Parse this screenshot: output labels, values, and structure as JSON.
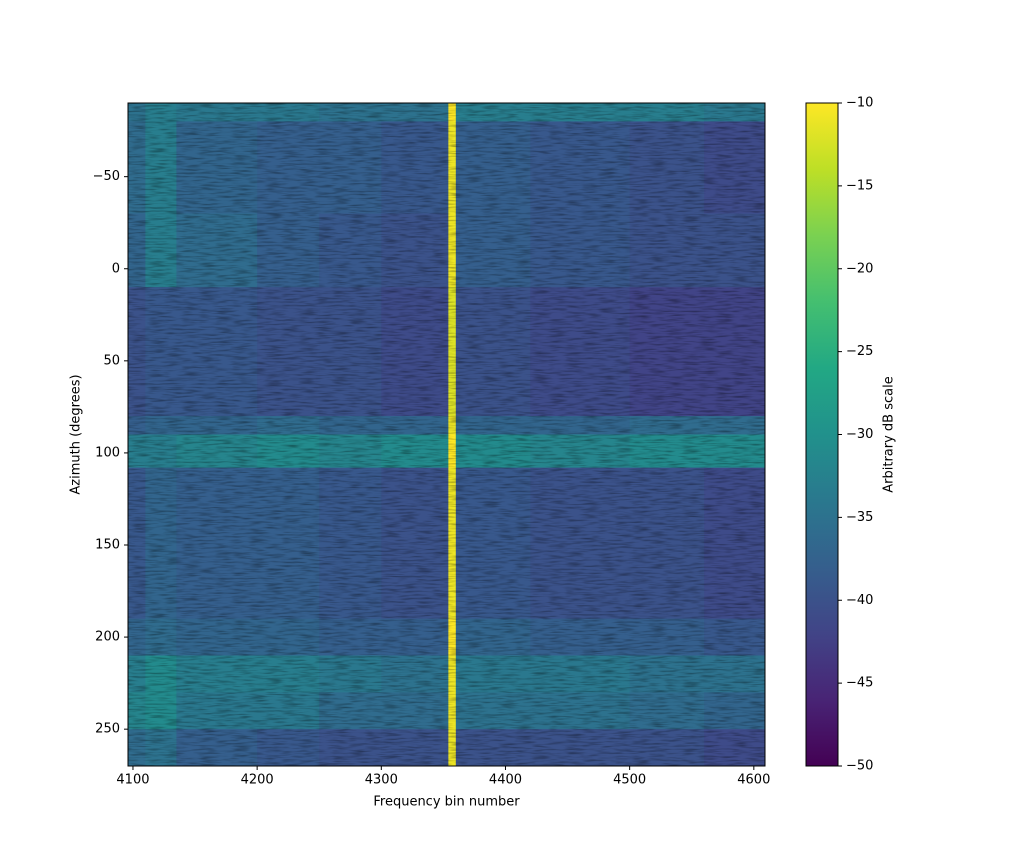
{
  "chart_data": {
    "type": "heatmap",
    "xlabel": "Frequency bin number",
    "ylabel": "Azimuth (degrees)",
    "colorbar_label": "Arbitrary dB scale",
    "colormap": "viridis",
    "clim": [
      -50,
      -10
    ],
    "cticks": [
      {
        "value": -50,
        "label": "−50"
      },
      {
        "value": -45,
        "label": "−45"
      },
      {
        "value": -40,
        "label": "−40"
      },
      {
        "value": -35,
        "label": "−35"
      },
      {
        "value": -30,
        "label": "−30"
      },
      {
        "value": -25,
        "label": "−25"
      },
      {
        "value": -20,
        "label": "−20"
      },
      {
        "value": -15,
        "label": "−15"
      },
      {
        "value": -10,
        "label": "−10"
      }
    ],
    "xlim": [
      4096,
      4609
    ],
    "ylim": [
      270,
      -90
    ],
    "xticks": [
      4100,
      4200,
      4300,
      4400,
      4500,
      4600
    ],
    "yticks": [
      {
        "value": -50,
        "label": "−50"
      },
      0,
      50,
      100,
      150,
      200,
      250
    ],
    "x_edges": [
      4096,
      4110,
      4135,
      4200,
      4250,
      4300,
      4354,
      4360,
      4420,
      4500,
      4560,
      4609
    ],
    "y_edges": [
      -90,
      -80,
      -30,
      10,
      80,
      90,
      108,
      190,
      210,
      230,
      250,
      270
    ],
    "z": [
      [
        -35,
        -33,
        -34,
        -34,
        -35,
        -35,
        -10,
        -33,
        -33,
        -33,
        -34
      ],
      [
        -36,
        -33,
        -37,
        -38,
        -38,
        -39,
        -11,
        -38,
        -39,
        -40,
        -41
      ],
      [
        -37,
        -33,
        -36,
        -38,
        -39,
        -40,
        -11,
        -38,
        -39,
        -40,
        -40
      ],
      [
        -40,
        -39,
        -39,
        -40,
        -40,
        -41,
        -12,
        -40,
        -41,
        -42,
        -42
      ],
      [
        -38,
        -37,
        -37,
        -36,
        -37,
        -37,
        -11,
        -37,
        -37,
        -36,
        -36
      ],
      [
        -33,
        -33,
        -32,
        -31,
        -32,
        -31,
        -10,
        -31,
        -32,
        -31,
        -31
      ],
      [
        -39,
        -37,
        -38,
        -38,
        -39,
        -40,
        -11,
        -39,
        -40,
        -40,
        -41
      ],
      [
        -37,
        -36,
        -37,
        -37,
        -38,
        -38,
        -10,
        -37,
        -38,
        -38,
        -39
      ],
      [
        -33,
        -31,
        -33,
        -33,
        -34,
        -35,
        -11,
        -34,
        -34,
        -35,
        -35
      ],
      [
        -32,
        -31,
        -34,
        -34,
        -36,
        -36,
        -11,
        -35,
        -35,
        -36,
        -37
      ],
      [
        -36,
        -35,
        -38,
        -39,
        -40,
        -40,
        -11,
        -40,
        -40,
        -40,
        -41
      ]
    ]
  }
}
